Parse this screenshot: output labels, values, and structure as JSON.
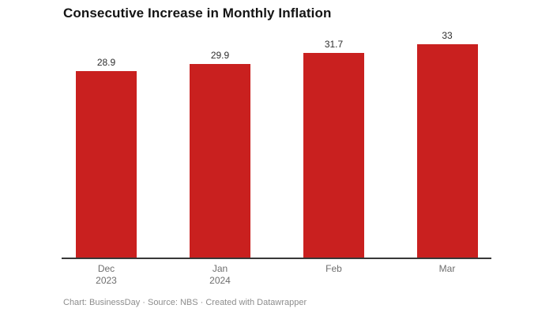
{
  "chart_data": {
    "type": "bar",
    "title": "Consecutive Increase in Monthly Inflation",
    "categories": [
      "Dec 2023",
      "Jan 2024",
      "Feb",
      "Mar"
    ],
    "category_lines": [
      [
        "Dec",
        "2023"
      ],
      [
        "Jan",
        "2024"
      ],
      [
        "Feb"
      ],
      [
        "Mar"
      ]
    ],
    "values": [
      28.9,
      29.9,
      31.7,
      33
    ],
    "value_labels": [
      "28.9",
      "29.9",
      "31.7",
      "33"
    ],
    "ylim": [
      0,
      33
    ],
    "grid": false,
    "legend": false,
    "bar_color": "#c9201f",
    "axis_color": "#383838",
    "value_label_color": "#2e2e2e",
    "tick_label_color": "#6e6e6e"
  },
  "footer": {
    "attribution": "Chart: BusinessDay · Source: NBS · Created with Datawrapper"
  }
}
